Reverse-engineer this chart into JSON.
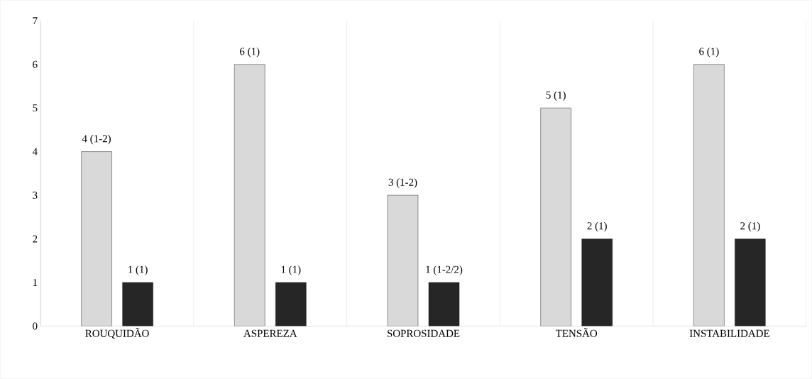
{
  "chart_data": {
    "type": "bar",
    "categories": [
      "ROUQUIDÃO",
      "ASPEREZA",
      "SOPROSIDADE",
      "TENSÃO",
      "INSTABILIDADE"
    ],
    "series": [
      {
        "color": "#d9d9d9",
        "values": [
          4,
          6,
          3,
          5,
          6
        ],
        "value_labels": [
          "4  (1-2)",
          "6  (1)",
          "3  (1-2)",
          "5  (1)",
          "6  (1)"
        ]
      },
      {
        "color": "#262626",
        "values": [
          1,
          1,
          1,
          2,
          2
        ],
        "value_labels": [
          "1  (1)",
          "1  (1)",
          "1  (1-2/2)",
          "2  (1)",
          "2  (1)"
        ]
      }
    ],
    "ylim": [
      0,
      7
    ],
    "yticks": [
      0,
      1,
      2,
      3,
      4,
      5,
      6,
      7
    ],
    "grid": "x"
  }
}
